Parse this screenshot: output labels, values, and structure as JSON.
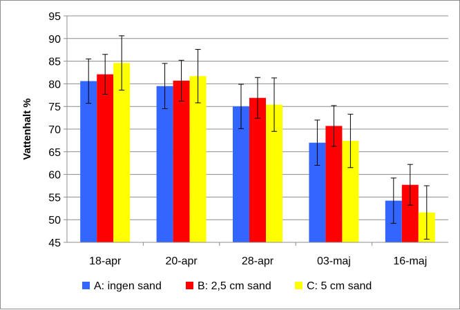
{
  "chart_data": {
    "type": "bar",
    "title": "",
    "xlabel": "",
    "ylabel": "Vattenhalt %",
    "ylim": [
      45,
      95
    ],
    "yticks": [
      45,
      50,
      55,
      60,
      65,
      70,
      75,
      80,
      85,
      90,
      95
    ],
    "grid": true,
    "legend_position": "bottom",
    "categories": [
      "18-apr",
      "20-apr",
      "28-apr",
      "03-maj",
      "16-maj"
    ],
    "series": [
      {
        "name": "A: ingen sand",
        "color": "#3366ff",
        "values": [
          80.6,
          79.5,
          75.0,
          67.0,
          54.2
        ],
        "error": [
          4.9,
          5.0,
          4.9,
          5.0,
          5.0
        ]
      },
      {
        "name": "B: 2,5 cm sand",
        "color": "#ff0000",
        "values": [
          82.1,
          80.7,
          76.9,
          70.7,
          57.7
        ],
        "error": [
          4.4,
          4.5,
          4.5,
          4.5,
          4.5
        ]
      },
      {
        "name": "C: 5 cm sand",
        "color": "#ffff00",
        "values": [
          84.6,
          81.7,
          75.4,
          67.4,
          51.6
        ],
        "error": [
          6.0,
          5.9,
          5.9,
          5.9,
          5.9
        ]
      }
    ]
  }
}
